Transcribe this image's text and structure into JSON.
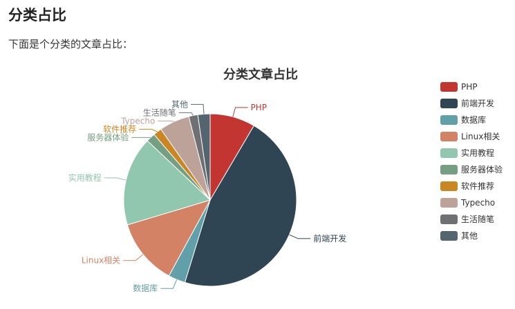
{
  "page": {
    "heading": "分类占比",
    "intro": "下面是个分类的文章占比："
  },
  "chart_data": {
    "type": "pie",
    "title": "分类文章占比",
    "legend_position": "right",
    "slices": [
      {
        "name": "PHP",
        "value": 8.5,
        "color": "#c23531"
      },
      {
        "name": "前端开发",
        "value": 46.5,
        "color": "#2f4554"
      },
      {
        "name": "数据库",
        "value": 3.2,
        "color": "#61a0a8"
      },
      {
        "name": "Linux相关",
        "value": 12.5,
        "color": "#d48265"
      },
      {
        "name": "实用教程",
        "value": 16.8,
        "color": "#91c7ae"
      },
      {
        "name": "服务器体验",
        "value": 1.7,
        "color": "#749f83"
      },
      {
        "name": "软件推荐",
        "value": 1.6,
        "color": "#ca8622"
      },
      {
        "name": "Typecho",
        "value": 5.7,
        "color": "#bda29a"
      },
      {
        "name": "生活随笔",
        "value": 1.7,
        "color": "#6e7074"
      },
      {
        "name": "其他",
        "value": 2.3,
        "color": "#546570"
      }
    ]
  }
}
